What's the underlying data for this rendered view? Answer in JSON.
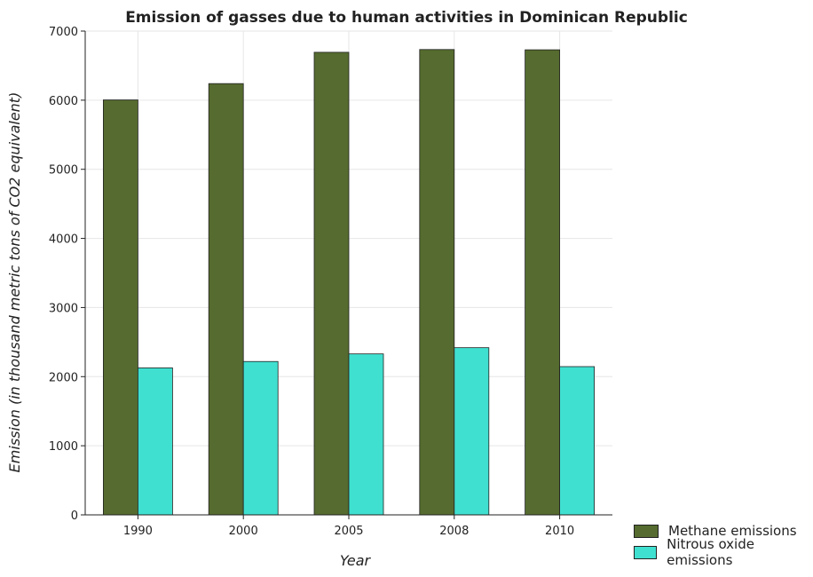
{
  "chart_data": {
    "type": "bar",
    "title": "Emission of gasses due to human activities in Dominican Republic",
    "xlabel": "Year",
    "ylabel": "Emission (in thousand metric tons of CO2 equivalent)",
    "categories": [
      "1990",
      "2000",
      "2005",
      "2008",
      "2010"
    ],
    "series": [
      {
        "name": "Methane emissions",
        "color": "#556b2f",
        "values": [
          6004,
          6240,
          6693,
          6733,
          6729
        ]
      },
      {
        "name": "Nitrous oxide emissions",
        "color": "#40e0d0",
        "values": [
          2127,
          2219,
          2329,
          2419,
          2145
        ]
      }
    ],
    "ylim": [
      0,
      7000
    ],
    "yticks": [
      0,
      1000,
      2000,
      3000,
      4000,
      5000,
      6000,
      7000
    ],
    "grid": true,
    "legend_position": "bottom-right"
  }
}
